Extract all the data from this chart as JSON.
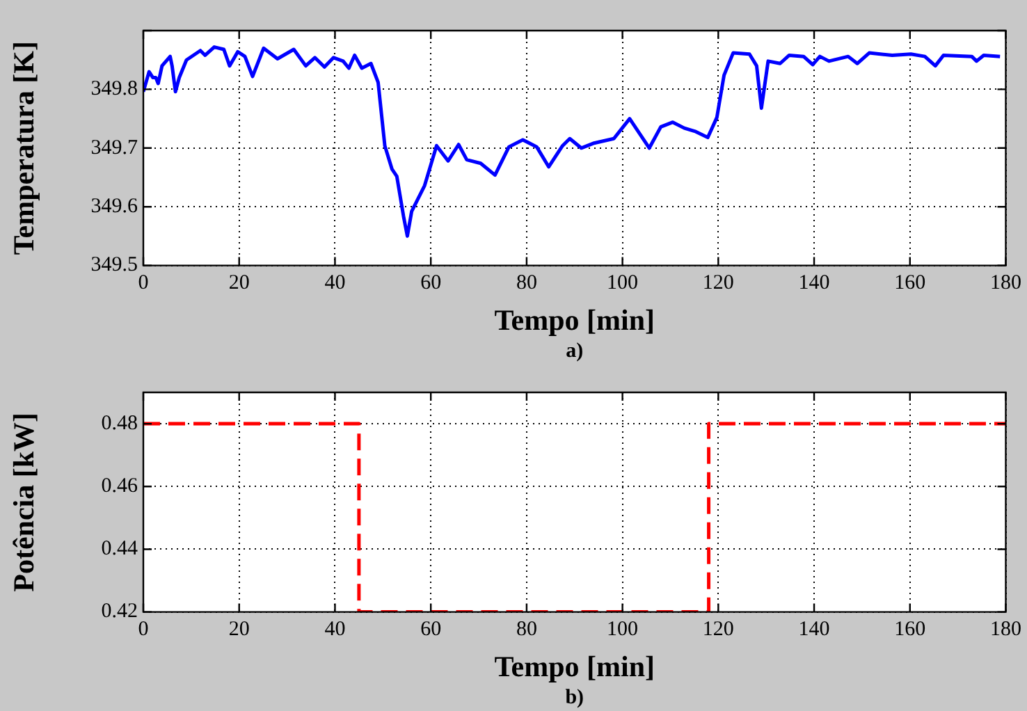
{
  "chart_data": [
    {
      "type": "line",
      "ylabel": "Temperatura [K]",
      "xlabel": "Tempo [min]",
      "annotations": [
        "a)"
      ],
      "xlim": [
        0,
        180
      ],
      "xticks": [
        0,
        20,
        40,
        60,
        80,
        100,
        120,
        140,
        160,
        180
      ],
      "ylim": [
        349.5,
        349.9
      ],
      "yticks": [
        349.5,
        349.6,
        349.7,
        349.8,
        {
          "value": 349.9,
          "label": null
        }
      ],
      "grid": true,
      "legend": false,
      "marker": "none",
      "line_style": "solid",
      "series": [
        {
          "color": "#0000ff",
          "x": [
            0,
            1.2,
            2,
            2.6,
            3.1,
            3.9,
            5.6,
            6,
            6.7,
            7.5,
            9,
            11.9,
            12.9,
            14.8,
            16.8,
            18,
            19.7,
            21.2,
            22.8,
            25.1,
            28,
            31.4,
            33.9,
            35.8,
            37.8,
            39.7,
            41.7,
            42.9,
            44.1,
            45.6,
            47.5,
            49,
            50.4,
            51.9,
            52.9,
            54.3,
            55.1,
            56,
            58.7,
            61.2,
            63.6,
            65.8,
            67.5,
            70.4,
            73.4,
            76.3,
            79.2,
            82.1,
            84.6,
            87.5,
            89,
            91.4,
            93.9,
            98.2,
            101.5,
            105.6,
            108,
            110.5,
            112.9,
            115.3,
            117.8,
            119.7,
            121.2,
            123.1,
            126.5,
            128,
            129,
            130.4,
            132.9,
            134.8,
            137.8,
            139.7,
            141.2,
            143.1,
            147.1,
            149,
            151.5,
            156.3,
            160.2,
            163.1,
            165.3,
            167,
            172.9,
            173.9,
            175.4,
            178.8
          ],
          "values": [
            349.796,
            349.83,
            349.82,
            349.82,
            349.81,
            349.84,
            349.856,
            349.84,
            349.796,
            349.82,
            349.85,
            349.866,
            349.858,
            349.872,
            349.868,
            349.84,
            349.864,
            349.856,
            349.822,
            349.87,
            349.852,
            349.868,
            349.84,
            349.854,
            349.838,
            349.854,
            349.848,
            349.836,
            349.858,
            349.836,
            349.844,
            349.812,
            349.704,
            349.664,
            349.652,
            349.584,
            349.55,
            349.592,
            349.636,
            349.704,
            349.678,
            349.706,
            349.68,
            349.674,
            349.654,
            349.702,
            349.714,
            349.702,
            349.668,
            349.704,
            349.716,
            349.7,
            349.708,
            349.716,
            349.75,
            349.7,
            349.736,
            349.744,
            349.734,
            349.728,
            349.718,
            349.752,
            349.824,
            349.862,
            349.86,
            349.84,
            349.768,
            349.848,
            349.844,
            349.858,
            349.856,
            349.842,
            349.856,
            349.848,
            349.856,
            349.844,
            349.862,
            349.858,
            349.86,
            349.856,
            349.84,
            349.858,
            349.856,
            349.848,
            349.858,
            349.856
          ]
        }
      ]
    },
    {
      "type": "step",
      "ylabel": "Potência [kW]",
      "xlabel": "Tempo [min]",
      "annotations": [
        "b)"
      ],
      "xlim": [
        0,
        180
      ],
      "xticks": [
        0,
        20,
        40,
        60,
        80,
        100,
        120,
        140,
        160,
        180
      ],
      "ylim": [
        0.42,
        0.49
      ],
      "yticks": [
        0.42,
        0.44,
        0.46,
        0.48
      ],
      "grid": true,
      "legend": false,
      "marker": "none",
      "line_style": "dashed",
      "series": [
        {
          "color": "#ff0000",
          "x": [
            0,
            45,
            118,
            180
          ],
          "values": [
            0.48,
            0.42,
            0.48,
            0.48
          ]
        }
      ]
    }
  ]
}
